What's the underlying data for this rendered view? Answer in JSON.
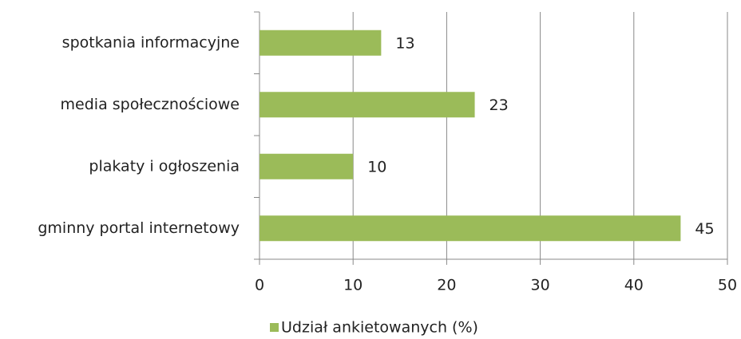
{
  "chart_data": {
    "type": "bar",
    "orientation": "horizontal",
    "categories": [
      "spotkania informacyjne",
      "media społecznościowe",
      "plakaty i ogłoszenia",
      "gminny portal internetowy"
    ],
    "series": [
      {
        "name": "Udział ankietowanych (%)",
        "color": "#9bbb59",
        "values": [
          13,
          23,
          10,
          45
        ]
      }
    ],
    "xlim": [
      0,
      50
    ],
    "xticks": [
      0,
      10,
      20,
      30,
      40,
      50
    ],
    "grid": true,
    "legend": "bottom"
  }
}
